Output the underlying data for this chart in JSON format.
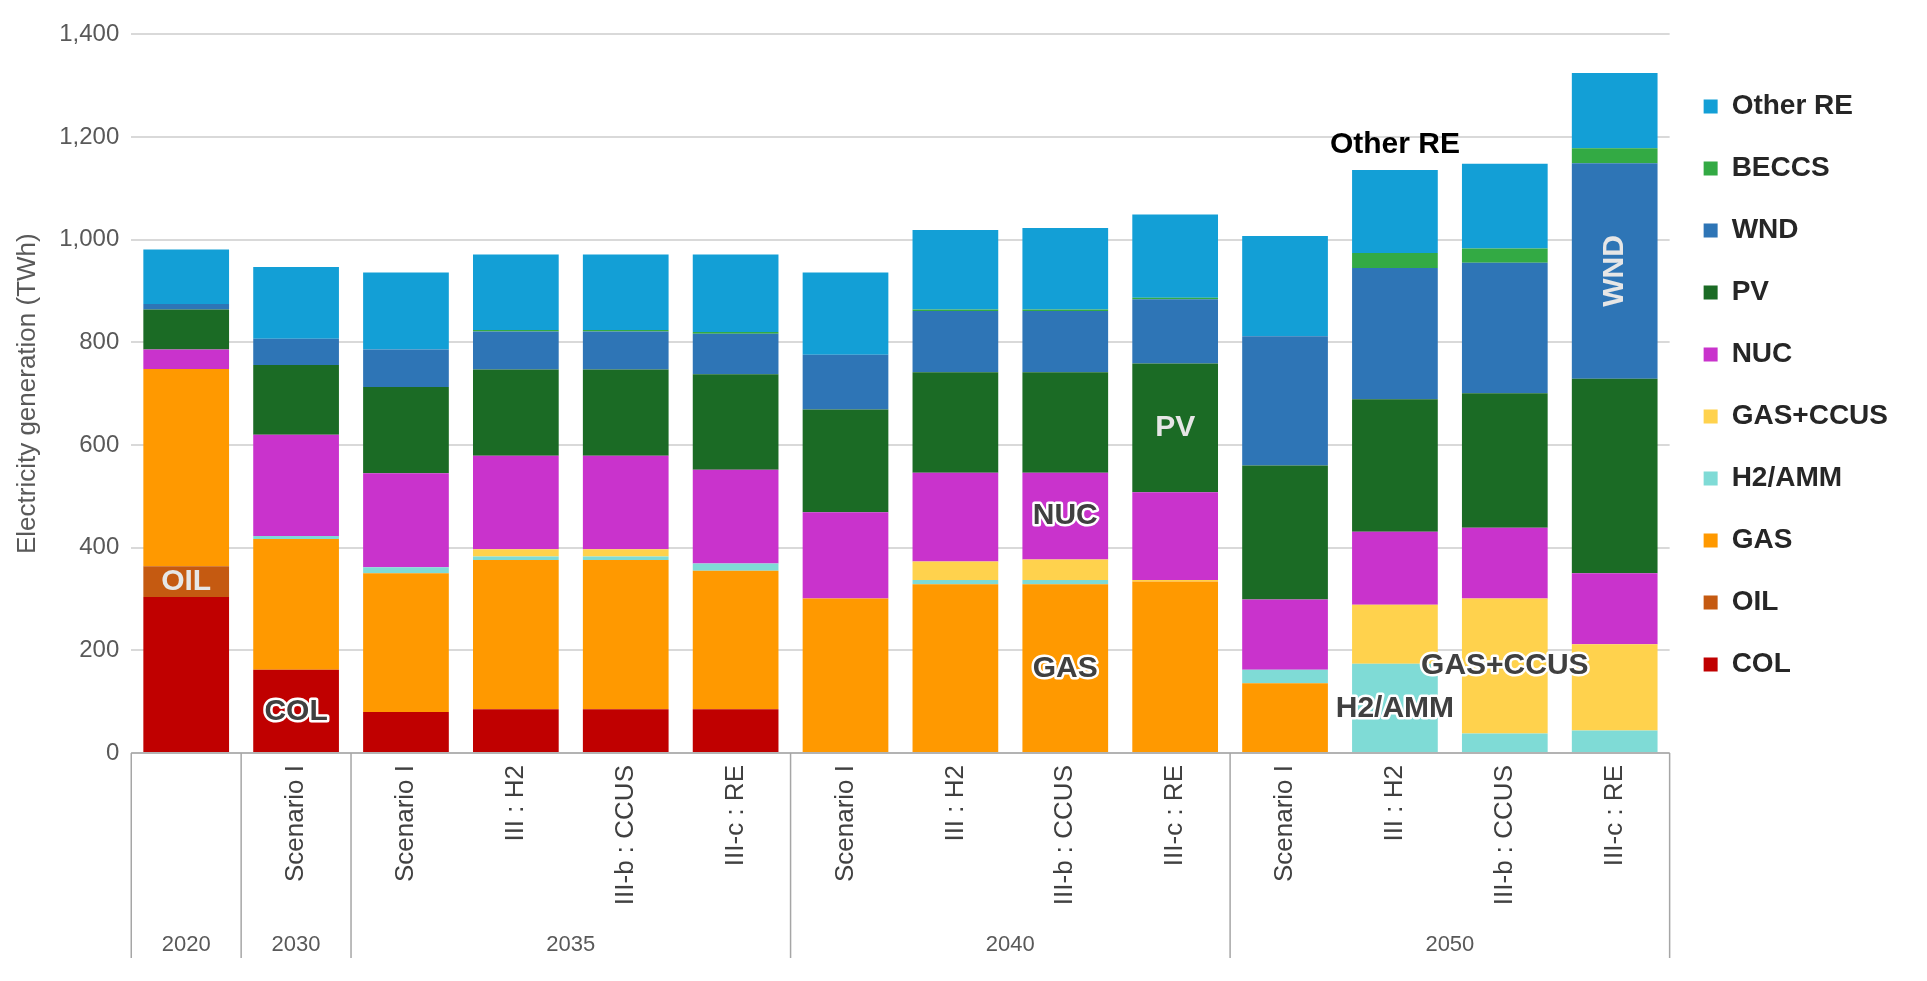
{
  "chart_data": {
    "type": "bar",
    "stacked": true,
    "ylabel": "Electricity generation (TWh)",
    "categories": [
      null,
      "Scenario I",
      "Scenario I",
      "III : H2",
      "III-b : CCUS",
      "III-c : RE",
      "Scenario I",
      "III : H2",
      "III-b : CCUS",
      "III-c : RE",
      "Scenario I",
      "III : H2",
      "III-b : CCUS",
      "III-c : RE"
    ],
    "series": [
      {
        "name": "COL",
        "color": "#c00000",
        "values": [
          304,
          162,
          80,
          85,
          85,
          85,
          0,
          0,
          0,
          0,
          0,
          0,
          0,
          0
        ]
      },
      {
        "name": "OIL",
        "color": "#c55a11",
        "values": [
          60,
          0,
          0,
          0,
          0,
          0,
          0,
          0,
          0,
          0,
          0,
          0,
          0,
          0
        ]
      },
      {
        "name": "GAS",
        "color": "#ff9900",
        "values": [
          384,
          255,
          270,
          291,
          291,
          270,
          301,
          329,
          329,
          334,
          136,
          0,
          0,
          0
        ]
      },
      {
        "name": "H2/AMM",
        "color": "#7fdbd6",
        "values": [
          0,
          6,
          12,
          7,
          7,
          14,
          0,
          8,
          8,
          0,
          26,
          174,
          38,
          44
        ]
      },
      {
        "name": "GAS+CCUS",
        "color": "#ffd24d",
        "values": [
          0,
          0,
          0,
          14,
          14,
          0,
          0,
          36,
          40,
          3,
          0,
          115,
          263,
          168
        ]
      },
      {
        "name": "NUC",
        "color": "#c933cc",
        "values": [
          38,
          197,
          183,
          182,
          182,
          183,
          168,
          173,
          169,
          171,
          137,
          142,
          138,
          138
        ]
      },
      {
        "name": "PV",
        "color": "#1b6b25",
        "values": [
          78,
          136,
          168,
          168,
          168,
          186,
          200,
          196,
          196,
          251,
          261,
          258,
          262,
          379
        ]
      },
      {
        "name": "WND",
        "color": "#2e75b6",
        "values": [
          11,
          51,
          73,
          74,
          74,
          79,
          107,
          119,
          119,
          125,
          252,
          256,
          254,
          420
        ]
      },
      {
        "name": "BECCS",
        "color": "#33aa44",
        "values": [
          0,
          0,
          0,
          3,
          3,
          3,
          0,
          3,
          3,
          3,
          0,
          29,
          28,
          29
        ]
      },
      {
        "name": "Other RE",
        "color": "#139fd6",
        "values": [
          106,
          140,
          150,
          147,
          147,
          151,
          160,
          155,
          159,
          162,
          195,
          162,
          165,
          147
        ]
      }
    ],
    "ylim": [
      0,
      1400
    ],
    "yticks": [
      0,
      200,
      400,
      600,
      800,
      {
        "value": 1000,
        "label": "1,000"
      },
      {
        "value": 1200,
        "label": "1,200"
      },
      {
        "value": 1400,
        "label": "1,400"
      }
    ],
    "grid": "y",
    "legend": "right",
    "annotations": [
      "2020",
      "2030",
      "2035",
      "2040",
      "2050"
    ]
  }
}
